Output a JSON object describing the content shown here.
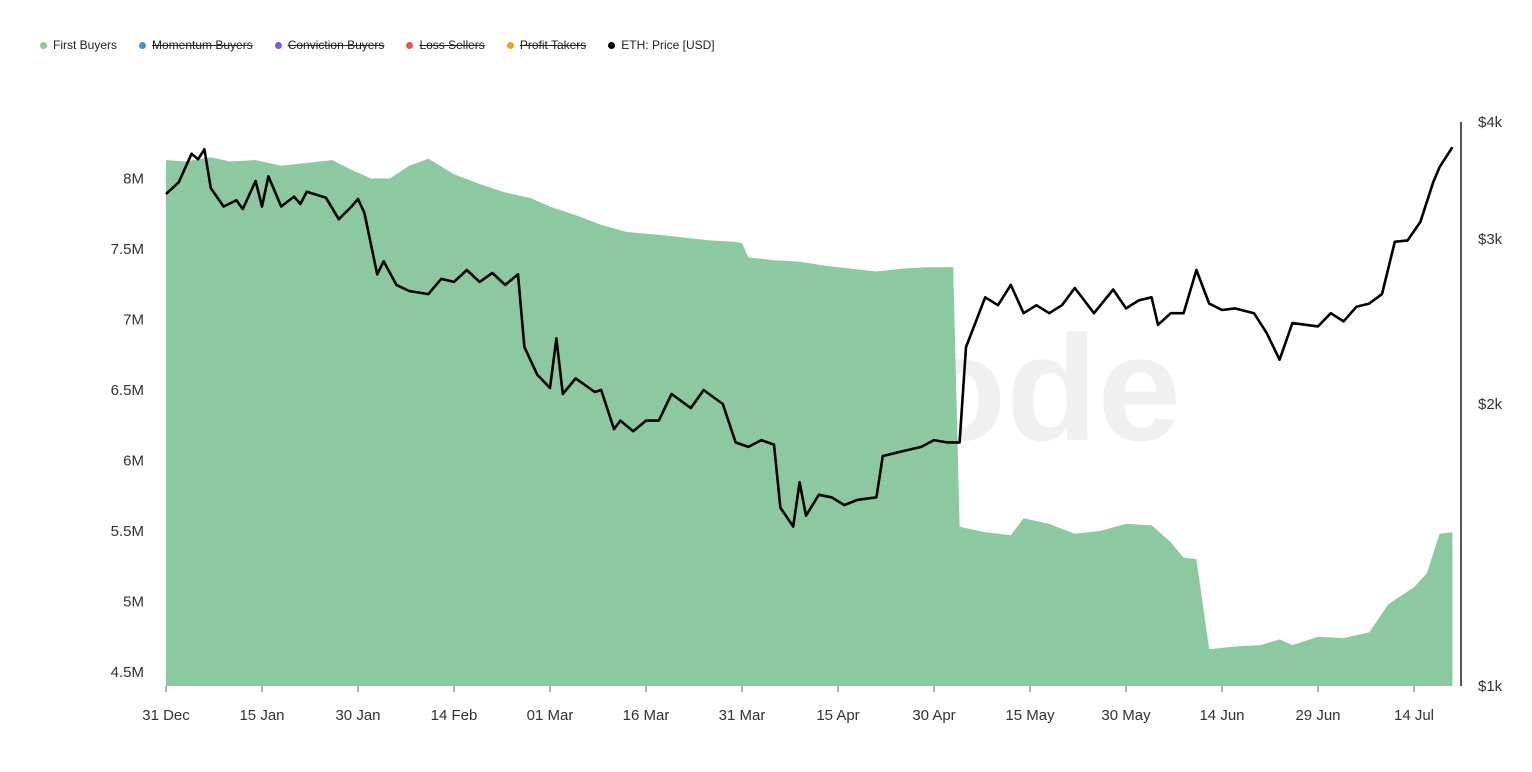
{
  "legend": [
    {
      "label": "First Buyers",
      "color": "#8cc9a1",
      "hidden": false
    },
    {
      "label": "Momentum Buyers",
      "color": "#4a90d9",
      "hidden": true
    },
    {
      "label": "Conviction Buyers",
      "color": "#7b5cd6",
      "hidden": true
    },
    {
      "label": "Loss Sellers",
      "color": "#e05a4a",
      "hidden": true
    },
    {
      "label": "Profit Takers",
      "color": "#f2a516",
      "hidden": true
    },
    {
      "label": "ETH: Price [USD]",
      "color": "#000000",
      "hidden": false
    }
  ],
  "watermark": "glassnode",
  "chart_data": {
    "type": "area",
    "x_ticks": [
      "31 Dec",
      "15 Jan",
      "30 Jan",
      "14 Feb",
      "01 Mar",
      "16 Mar",
      "31 Mar",
      "15 Apr",
      "30 Apr",
      "15 May",
      "30 May",
      "14 Jun",
      "29 Jun",
      "14 Jul"
    ],
    "y_left_ticks": [
      "8M",
      "7.5M",
      "7M",
      "6.5M",
      "6M",
      "5.5M",
      "5M",
      "4.5M"
    ],
    "y_left_range": [
      4.4,
      8.4
    ],
    "y_right_ticks": [
      "$4k",
      "$3k",
      "$2k",
      "$1k"
    ],
    "y_right_scale": "log",
    "y_right_range": [
      1000,
      4000
    ],
    "series": [
      {
        "name": "First Buyers",
        "type": "area",
        "color": "#8cc9a1",
        "points": [
          [
            "31 Dec",
            8.13
          ],
          [
            "03 Jan",
            8.12
          ],
          [
            "07 Jan",
            8.15
          ],
          [
            "10 Jan",
            8.12
          ],
          [
            "14 Jan",
            8.13
          ],
          [
            "18 Jan",
            8.09
          ],
          [
            "22 Jan",
            8.11
          ],
          [
            "26 Jan",
            8.13
          ],
          [
            "29 Jan",
            8.06
          ],
          [
            "01 Feb",
            8.0
          ],
          [
            "04 Feb",
            8.0
          ],
          [
            "07 Feb",
            8.09
          ],
          [
            "10 Feb",
            8.14
          ],
          [
            "14 Feb",
            8.03
          ],
          [
            "18 Feb",
            7.96
          ],
          [
            "22 Feb",
            7.9
          ],
          [
            "26 Feb",
            7.86
          ],
          [
            "01 Mar",
            7.8
          ],
          [
            "05 Mar",
            7.74
          ],
          [
            "09 Mar",
            7.67
          ],
          [
            "13 Mar",
            7.62
          ],
          [
            "18 Mar",
            7.6
          ],
          [
            "22 Mar",
            7.58
          ],
          [
            "26 Mar",
            7.56
          ],
          [
            "30 Mar",
            7.55
          ],
          [
            "31 Mar",
            7.54
          ],
          [
            "01 Apr",
            7.44
          ],
          [
            "05 Apr",
            7.42
          ],
          [
            "09 Apr",
            7.41
          ],
          [
            "13 Apr",
            7.38
          ],
          [
            "17 Apr",
            7.36
          ],
          [
            "21 Apr",
            7.34
          ],
          [
            "25 Apr",
            7.36
          ],
          [
            "29 Apr",
            7.37
          ],
          [
            "03 May",
            7.37
          ],
          [
            "04 May",
            5.53
          ],
          [
            "08 May",
            5.49
          ],
          [
            "12 May",
            5.47
          ],
          [
            "14 May",
            5.59
          ],
          [
            "18 May",
            5.55
          ],
          [
            "22 May",
            5.48
          ],
          [
            "26 May",
            5.5
          ],
          [
            "30 May",
            5.55
          ],
          [
            "03 Jun",
            5.54
          ],
          [
            "06 Jun",
            5.42
          ],
          [
            "08 Jun",
            5.31
          ],
          [
            "10 Jun",
            5.3
          ],
          [
            "12 Jun",
            4.66
          ],
          [
            "16 Jun",
            4.68
          ],
          [
            "20 Jun",
            4.69
          ],
          [
            "23 Jun",
            4.73
          ],
          [
            "25 Jun",
            4.69
          ],
          [
            "29 Jun",
            4.75
          ],
          [
            "03 Jul",
            4.74
          ],
          [
            "07 Jul",
            4.78
          ],
          [
            "10 Jul",
            4.98
          ],
          [
            "14 Jul",
            5.1
          ],
          [
            "16 Jul",
            5.2
          ],
          [
            "18 Jul",
            5.48
          ],
          [
            "20 Jul",
            5.49
          ]
        ]
      },
      {
        "name": "ETH: Price [USD]",
        "type": "line",
        "color": "#000000",
        "points": [
          [
            "31 Dec",
            3350
          ],
          [
            "02 Jan",
            3450
          ],
          [
            "04 Jan",
            3700
          ],
          [
            "05 Jan",
            3650
          ],
          [
            "06 Jan",
            3740
          ],
          [
            "07 Jan",
            3400
          ],
          [
            "09 Jan",
            3250
          ],
          [
            "11 Jan",
            3300
          ],
          [
            "12 Jan",
            3230
          ],
          [
            "14 Jan",
            3460
          ],
          [
            "15 Jan",
            3250
          ],
          [
            "16 Jan",
            3500
          ],
          [
            "18 Jan",
            3250
          ],
          [
            "20 Jan",
            3330
          ],
          [
            "21 Jan",
            3270
          ],
          [
            "22 Jan",
            3370
          ],
          [
            "25 Jan",
            3320
          ],
          [
            "27 Jan",
            3150
          ],
          [
            "29 Jan",
            3250
          ],
          [
            "30 Jan",
            3310
          ],
          [
            "31 Jan",
            3200
          ],
          [
            "02 Feb",
            2750
          ],
          [
            "03 Feb",
            2840
          ],
          [
            "05 Feb",
            2680
          ],
          [
            "07 Feb",
            2640
          ],
          [
            "10 Feb",
            2620
          ],
          [
            "12 Feb",
            2720
          ],
          [
            "14 Feb",
            2700
          ],
          [
            "16 Feb",
            2780
          ],
          [
            "18 Feb",
            2700
          ],
          [
            "20 Feb",
            2760
          ],
          [
            "22 Feb",
            2680
          ],
          [
            "24 Feb",
            2750
          ],
          [
            "25 Feb",
            2300
          ],
          [
            "27 Feb",
            2150
          ],
          [
            "01 Mar",
            2080
          ],
          [
            "02 Mar",
            2350
          ],
          [
            "03 Mar",
            2050
          ],
          [
            "05 Mar",
            2130
          ],
          [
            "08 Mar",
            2060
          ],
          [
            "09 Mar",
            2070
          ],
          [
            "11 Mar",
            1880
          ],
          [
            "12 Mar",
            1920
          ],
          [
            "14 Mar",
            1870
          ],
          [
            "16 Mar",
            1920
          ],
          [
            "18 Mar",
            1920
          ],
          [
            "20 Mar",
            2050
          ],
          [
            "23 Mar",
            1980
          ],
          [
            "25 Mar",
            2070
          ],
          [
            "28 Mar",
            2000
          ],
          [
            "30 Mar",
            1820
          ],
          [
            "01 Apr",
            1800
          ],
          [
            "03 Apr",
            1830
          ],
          [
            "05 Apr",
            1810
          ],
          [
            "06 Apr",
            1550
          ],
          [
            "08 Apr",
            1480
          ],
          [
            "09 Apr",
            1650
          ],
          [
            "10 Apr",
            1520
          ],
          [
            "12 Apr",
            1600
          ],
          [
            "14 Apr",
            1590
          ],
          [
            "16 Apr",
            1560
          ],
          [
            "18 Apr",
            1580
          ],
          [
            "21 Apr",
            1590
          ],
          [
            "22 Apr",
            1760
          ],
          [
            "25 Apr",
            1780
          ],
          [
            "28 Apr",
            1800
          ],
          [
            "30 Apr",
            1830
          ],
          [
            "02 May",
            1820
          ],
          [
            "04 May",
            1820
          ],
          [
            "05 May",
            2300
          ],
          [
            "08 May",
            2600
          ],
          [
            "10 May",
            2550
          ],
          [
            "12 May",
            2680
          ],
          [
            "14 May",
            2500
          ],
          [
            "16 May",
            2550
          ],
          [
            "18 May",
            2500
          ],
          [
            "20 May",
            2550
          ],
          [
            "22 May",
            2660
          ],
          [
            "25 May",
            2500
          ],
          [
            "28 May",
            2650
          ],
          [
            "30 May",
            2530
          ],
          [
            "01 Jun",
            2580
          ],
          [
            "03 Jun",
            2600
          ],
          [
            "04 Jun",
            2430
          ],
          [
            "06 Jun",
            2500
          ],
          [
            "08 Jun",
            2500
          ],
          [
            "10 Jun",
            2780
          ],
          [
            "12 Jun",
            2560
          ],
          [
            "14 Jun",
            2520
          ],
          [
            "16 Jun",
            2530
          ],
          [
            "19 Jun",
            2500
          ],
          [
            "21 Jun",
            2380
          ],
          [
            "23 Jun",
            2230
          ],
          [
            "25 Jun",
            2440
          ],
          [
            "29 Jun",
            2420
          ],
          [
            "01 Jul",
            2500
          ],
          [
            "03 Jul",
            2450
          ],
          [
            "05 Jul",
            2540
          ],
          [
            "07 Jul",
            2560
          ],
          [
            "09 Jul",
            2620
          ],
          [
            "11 Jul",
            2980
          ],
          [
            "13 Jul",
            2990
          ],
          [
            "15 Jul",
            3130
          ],
          [
            "17 Jul",
            3450
          ],
          [
            "18 Jul",
            3580
          ],
          [
            "20 Jul",
            3760
          ]
        ]
      }
    ]
  }
}
